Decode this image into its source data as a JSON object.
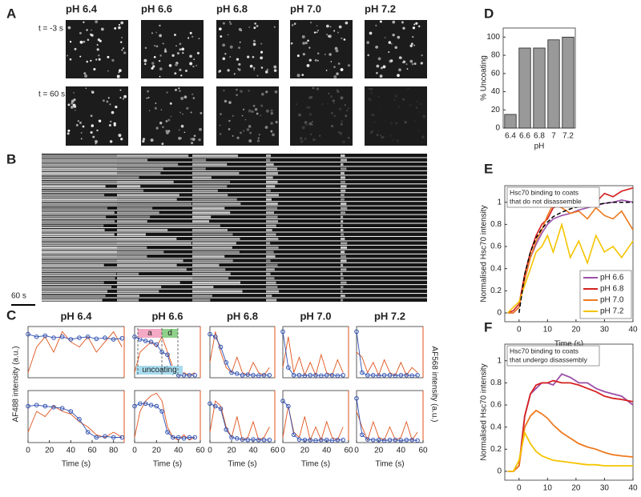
{
  "panel_labels": [
    "A",
    "B",
    "C",
    "D",
    "E",
    "F"
  ],
  "panel_a": {
    "columns": [
      "pH 6.4",
      "pH 6.6",
      "pH 6.8",
      "pH 7.0",
      "pH 7.2"
    ],
    "rows": [
      "t = -3 s",
      "t = 60 s"
    ]
  },
  "panel_b": {
    "scale_bar": "60 s"
  },
  "panel_c": {
    "ylabel_left": "AF488 intensity (a.u.)",
    "ylabel_right": "AF568 intensity (a.u.)",
    "annotations": [
      "a",
      "d",
      "uncoating"
    ]
  },
  "chart_data": [
    {
      "type": "bar",
      "categories": [
        "6.4",
        "6.6",
        "6.8",
        "7",
        "7.2"
      ],
      "values": [
        15,
        88,
        88,
        97,
        100
      ],
      "color": "#999999",
      "ylim": [
        0,
        110
      ],
      "yticks": [
        0,
        20,
        40,
        60,
        80,
        100
      ],
      "xlabel": "pH",
      "ylabel": "% Uncoating"
    },
    {
      "type": "line",
      "annotation": [
        "Hsc70 binding to coats",
        "that do not disassemble"
      ],
      "x": [
        -4,
        -2,
        0,
        2,
        4,
        6,
        8,
        10,
        12,
        15,
        18,
        21,
        24,
        27,
        30,
        33,
        36,
        40
      ],
      "xlim": [
        -5,
        40
      ],
      "xticks": [
        0,
        10,
        20,
        30,
        40
      ],
      "ylim": [
        -0.08,
        1.15
      ],
      "yticks": [
        0,
        0.2,
        0.4,
        0.6,
        0.8,
        1
      ],
      "xlabel": "Time (s)",
      "ylabel": "Normalised Hsc70 intensity",
      "legend": "lower right",
      "series": [
        {
          "name": "pH 6.6",
          "color": "#9b4fa8",
          "values": [
            0,
            0,
            0.05,
            0.3,
            0.5,
            0.62,
            0.72,
            0.8,
            0.85,
            0.88,
            0.9,
            0.93,
            0.95,
            0.97,
            0.99,
            1.0,
            1.02,
            1.0
          ]
        },
        {
          "name": "pH 6.8",
          "color": "#d62020",
          "values": [
            0,
            0.02,
            0.08,
            0.35,
            0.55,
            0.7,
            0.8,
            0.85,
            0.95,
            0.98,
            0.97,
            1.02,
            1.05,
            1.0,
            1.08,
            1.05,
            1.1,
            1.13
          ]
        },
        {
          "name": "pH 7.0",
          "color": "#ee7a1e",
          "values": [
            0,
            0,
            0.05,
            0.3,
            0.5,
            0.65,
            0.75,
            0.88,
            0.98,
            0.95,
            0.9,
            0.92,
            0.85,
            0.95,
            0.88,
            0.85,
            0.92,
            0.75
          ]
        },
        {
          "name": "pH 7.2",
          "color": "#f5c400",
          "values": [
            0,
            0.05,
            0.1,
            0.25,
            0.4,
            0.55,
            0.6,
            0.7,
            0.55,
            0.8,
            0.5,
            0.65,
            0.45,
            0.7,
            0.55,
            0.6,
            0.5,
            0.65
          ]
        }
      ],
      "fit": {
        "color": "#000000",
        "dashed": true,
        "values": [
          null,
          null,
          0,
          0.35,
          0.55,
          0.68,
          0.76,
          0.82,
          0.87,
          0.91,
          0.94,
          0.96,
          0.97,
          0.98,
          0.99,
          1.0,
          1.0,
          1.0
        ]
      }
    },
    {
      "type": "line",
      "annotation": [
        "Hsc70 binding to coats",
        "that undergo disassembly"
      ],
      "x": [
        -4,
        -2,
        0,
        2,
        4,
        6,
        8,
        10,
        12,
        15,
        18,
        21,
        24,
        27,
        30,
        33,
        36,
        40
      ],
      "xlim": [
        -5,
        40
      ],
      "xticks": [
        0,
        10,
        20,
        30,
        40
      ],
      "ylim": [
        -0.08,
        1.15
      ],
      "yticks": [
        0,
        0.2,
        0.4,
        0.6,
        0.8,
        1
      ],
      "xlabel": "Time (s)",
      "ylabel": "Normalised Hsc70 intensity",
      "series": [
        {
          "color": "#9b4fa8",
          "values": [
            0,
            0,
            0.05,
            0.5,
            0.7,
            0.75,
            0.8,
            0.8,
            0.78,
            0.88,
            0.85,
            0.8,
            0.8,
            0.75,
            0.72,
            0.7,
            0.68,
            0.6
          ]
        },
        {
          "color": "#d62020",
          "values": [
            0,
            0,
            0.05,
            0.5,
            0.7,
            0.78,
            0.8,
            0.8,
            0.82,
            0.8,
            0.8,
            0.78,
            0.75,
            0.72,
            0.68,
            0.66,
            0.65,
            0.63
          ]
        },
        {
          "color": "#ee7a1e",
          "values": [
            0,
            0,
            0.05,
            0.4,
            0.5,
            0.55,
            0.52,
            0.48,
            0.42,
            0.35,
            0.3,
            0.25,
            0.22,
            0.2,
            0.17,
            0.15,
            0.14,
            0.13
          ]
        },
        {
          "color": "#f5c400",
          "values": [
            0,
            0,
            0.1,
            0.35,
            0.25,
            0.18,
            0.14,
            0.12,
            0.1,
            0.09,
            0.08,
            0.07,
            0.06,
            0.06,
            0.05,
            0.05,
            0.05,
            0.05
          ]
        }
      ]
    },
    {
      "type": "line",
      "title": "pH 6.4",
      "x": [
        0,
        8,
        16,
        24,
        32,
        40,
        48,
        56,
        64,
        72,
        80,
        88
      ],
      "xlim": [
        0,
        90
      ],
      "ylim": [
        0,
        1
      ],
      "series": [
        {
          "color": "#3050b0",
          "markers": true,
          "values": [
            0.85,
            0.8,
            0.82,
            0.78,
            0.8,
            0.75,
            0.78,
            0.8,
            0.76,
            0.78,
            0.75,
            0.77
          ]
        },
        {
          "color": "#e0531c",
          "values": [
            0.1,
            0.6,
            0.8,
            0.5,
            0.9,
            0.7,
            0.6,
            0.8,
            0.5,
            0.7,
            0.9,
            0.6
          ]
        }
      ]
    },
    {
      "type": "line",
      "x": [
        0,
        8,
        16,
        24,
        32,
        40,
        48,
        56,
        64,
        72,
        80,
        88
      ],
      "xlim": [
        0,
        90
      ],
      "ylim": [
        0,
        1
      ],
      "xticks": [
        0,
        20,
        40,
        60,
        80
      ],
      "xlabel": "Time (s)",
      "series": [
        {
          "color": "#3050b0",
          "markers": true,
          "values": [
            0.7,
            0.72,
            0.7,
            0.68,
            0.66,
            0.6,
            0.45,
            0.2,
            0.1,
            0.12,
            0.1,
            0.1
          ]
        },
        {
          "color": "#e0531c",
          "values": [
            0.2,
            0.6,
            0.5,
            0.7,
            0.6,
            0.55,
            0.4,
            0.3,
            0.15,
            0.1,
            0.2,
            0.1
          ]
        }
      ]
    },
    {
      "type": "line",
      "title": "pH 6.6",
      "x": [
        0,
        5,
        10,
        15,
        20,
        25,
        30,
        35,
        40,
        45,
        50,
        55
      ],
      "xlim": [
        0,
        60
      ],
      "ylim": [
        0,
        1
      ],
      "series": [
        {
          "color": "#3050b0",
          "markers": true,
          "values": [
            0.8,
            0.75,
            0.72,
            0.7,
            0.65,
            0.5,
            0.45,
            0.1,
            0.05,
            0.05,
            0.05,
            0.05
          ]
        },
        {
          "color": "#e0531c",
          "values": [
            0.1,
            0.5,
            0.6,
            0.7,
            0.6,
            0.8,
            0.5,
            0.2,
            0.05,
            0.1,
            0.05,
            0.1
          ]
        }
      ]
    },
    {
      "type": "line",
      "x": [
        0,
        5,
        10,
        15,
        20,
        25,
        30,
        35,
        40,
        45,
        50,
        55
      ],
      "xlim": [
        0,
        60
      ],
      "ylim": [
        0,
        1
      ],
      "xticks": [
        0,
        20,
        40,
        60
      ],
      "xlabel": "Time (s)",
      "series": [
        {
          "color": "#3050b0",
          "markers": true,
          "values": [
            0.7,
            0.75,
            0.75,
            0.72,
            0.7,
            0.6,
            0.2,
            0.1,
            0.1,
            0.08,
            0.1,
            0.1
          ]
        },
        {
          "color": "#e0531c",
          "values": [
            0.1,
            0.6,
            0.8,
            0.9,
            0.95,
            0.8,
            0.3,
            0.1,
            0.05,
            0.15,
            0.05,
            0.1
          ]
        }
      ]
    },
    {
      "type": "line",
      "title": "pH 6.8",
      "x": [
        0,
        5,
        10,
        15,
        20,
        25,
        30,
        35,
        40,
        45,
        50,
        55
      ],
      "xlim": [
        0,
        60
      ],
      "ylim": [
        0,
        1
      ],
      "series": [
        {
          "color": "#3050b0",
          "markers": true,
          "values": [
            0.85,
            0.8,
            0.6,
            0.3,
            0.1,
            0.08,
            0.05,
            0.06,
            0.05,
            0.04,
            0.05,
            0.05
          ]
        },
        {
          "color": "#e0531c",
          "values": [
            0.3,
            0.9,
            0.5,
            0.2,
            0.1,
            0.4,
            0.1,
            0.05,
            0.3,
            0.1,
            0.05,
            0.2
          ]
        }
      ]
    },
    {
      "type": "line",
      "x": [
        0,
        5,
        10,
        15,
        20,
        25,
        30,
        35,
        40,
        45,
        50,
        55
      ],
      "xlim": [
        0,
        60
      ],
      "ylim": [
        0,
        1
      ],
      "xticks": [
        0,
        20,
        40,
        60
      ],
      "xlabel": "Time (s)",
      "series": [
        {
          "color": "#3050b0",
          "markers": true,
          "values": [
            0.75,
            0.7,
            0.65,
            0.25,
            0.1,
            0.08,
            0.06,
            0.05,
            0.06,
            0.05,
            0.05,
            0.05
          ]
        },
        {
          "color": "#e0531c",
          "values": [
            0.2,
            0.8,
            0.7,
            0.3,
            0.1,
            0.5,
            0.05,
            0.1,
            0.4,
            0.05,
            0.1,
            0.3
          ]
        }
      ]
    },
    {
      "type": "line",
      "title": "pH 7.0",
      "x": [
        0,
        5,
        10,
        15,
        20,
        25,
        30,
        35,
        40,
        45,
        50,
        55
      ],
      "xlim": [
        0,
        60
      ],
      "ylim": [
        0,
        1
      ],
      "series": [
        {
          "color": "#3050b0",
          "markers": true,
          "values": [
            0.9,
            0.2,
            0.05,
            0.05,
            0.04,
            0.05,
            0.05,
            0.04,
            0.05,
            0.05,
            0.04,
            0.05
          ]
        },
        {
          "color": "#e0531c",
          "values": [
            0.2,
            0.8,
            0.1,
            0.4,
            0.05,
            0.3,
            0.05,
            0.45,
            0.1,
            0.05,
            0.35,
            0.1
          ]
        }
      ]
    },
    {
      "type": "line",
      "x": [
        0,
        5,
        10,
        15,
        20,
        25,
        30,
        35,
        40,
        45,
        50,
        55
      ],
      "xlim": [
        0,
        60
      ],
      "ylim": [
        0,
        1
      ],
      "xticks": [
        0,
        20,
        40,
        60
      ],
      "xlabel": "Time (s)",
      "series": [
        {
          "color": "#3050b0",
          "markers": true,
          "values": [
            0.8,
            0.7,
            0.15,
            0.06,
            0.05,
            0.05,
            0.04,
            0.05,
            0.05,
            0.04,
            0.05,
            0.05
          ]
        },
        {
          "color": "#e0531c",
          "values": [
            0.1,
            0.7,
            0.2,
            0.1,
            0.5,
            0.05,
            0.3,
            0.05,
            0.4,
            0.1,
            0.05,
            0.3
          ]
        }
      ]
    },
    {
      "type": "line",
      "title": "pH 7.2",
      "x": [
        0,
        5,
        10,
        15,
        20,
        25,
        30,
        35,
        40,
        45,
        50,
        55
      ],
      "xlim": [
        0,
        60
      ],
      "ylim": [
        0,
        1
      ],
      "series": [
        {
          "color": "#3050b0",
          "markers": true,
          "values": [
            0.9,
            0.1,
            0.05,
            0.05,
            0.04,
            0.05,
            0.05,
            0.04,
            0.05,
            0.05,
            0.04,
            0.05
          ]
        },
        {
          "color": "#e0531c",
          "values": [
            0.5,
            0.4,
            0.1,
            0.3,
            0.05,
            0.35,
            0.1,
            0.05,
            0.3,
            0.05,
            0.2,
            0.1
          ]
        }
      ]
    },
    {
      "type": "line",
      "x": [
        0,
        5,
        10,
        15,
        20,
        25,
        30,
        35,
        40,
        45,
        50,
        55
      ],
      "xlim": [
        0,
        60
      ],
      "ylim": [
        0,
        1
      ],
      "xticks": [
        0,
        20,
        40,
        60
      ],
      "xlabel": "Time (s)",
      "series": [
        {
          "color": "#3050b0",
          "markers": true,
          "values": [
            0.85,
            0.15,
            0.06,
            0.05,
            0.05,
            0.04,
            0.05,
            0.05,
            0.04,
            0.05,
            0.05,
            0.04
          ]
        },
        {
          "color": "#e0531c",
          "values": [
            0.6,
            0.3,
            0.05,
            0.4,
            0.1,
            0.05,
            0.3,
            0.05,
            0.1,
            0.4,
            0.05,
            0.2
          ]
        }
      ]
    }
  ]
}
